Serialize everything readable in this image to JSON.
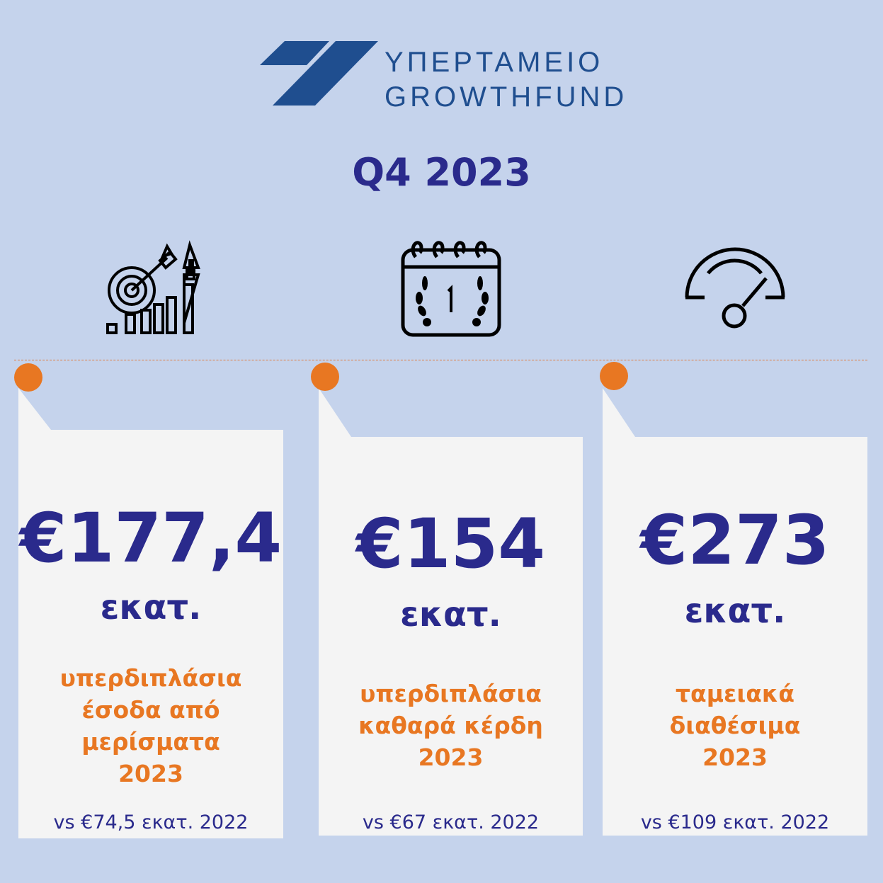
{
  "logo": {
    "line1": "ΥΠΕΡΤΑΜΕΙΟ",
    "line2": "GROWTHFUND",
    "color": "#1f4e8f"
  },
  "title": "Q4 2023",
  "icons": [
    "target-growth-chart-icon",
    "calendar-award-icon",
    "speedometer-gauge-icon"
  ],
  "colors": {
    "background": "#c5d3ec",
    "navy": "#2a2a8c",
    "orange": "#e87722",
    "card": "#f4f4f4"
  },
  "cards": [
    {
      "amount": "€177,4",
      "unit": "εκατ.",
      "desc": [
        "υπερδιπλάσια",
        "έσοδα από",
        "μερίσματα",
        "2023"
      ],
      "comparison": "vs €74,5 εκατ. 2022"
    },
    {
      "amount": "€154",
      "unit": "εκατ.",
      "desc": [
        "υπερδιπλάσια",
        "καθαρά κέρδη",
        "2023"
      ],
      "comparison": "vs €67 εκατ. 2022"
    },
    {
      "amount": "€273",
      "unit": "εκατ.",
      "desc": [
        "ταμειακά",
        "διαθέσιμα",
        "2023"
      ],
      "comparison": "vs €109 εκατ. 2022"
    }
  ]
}
